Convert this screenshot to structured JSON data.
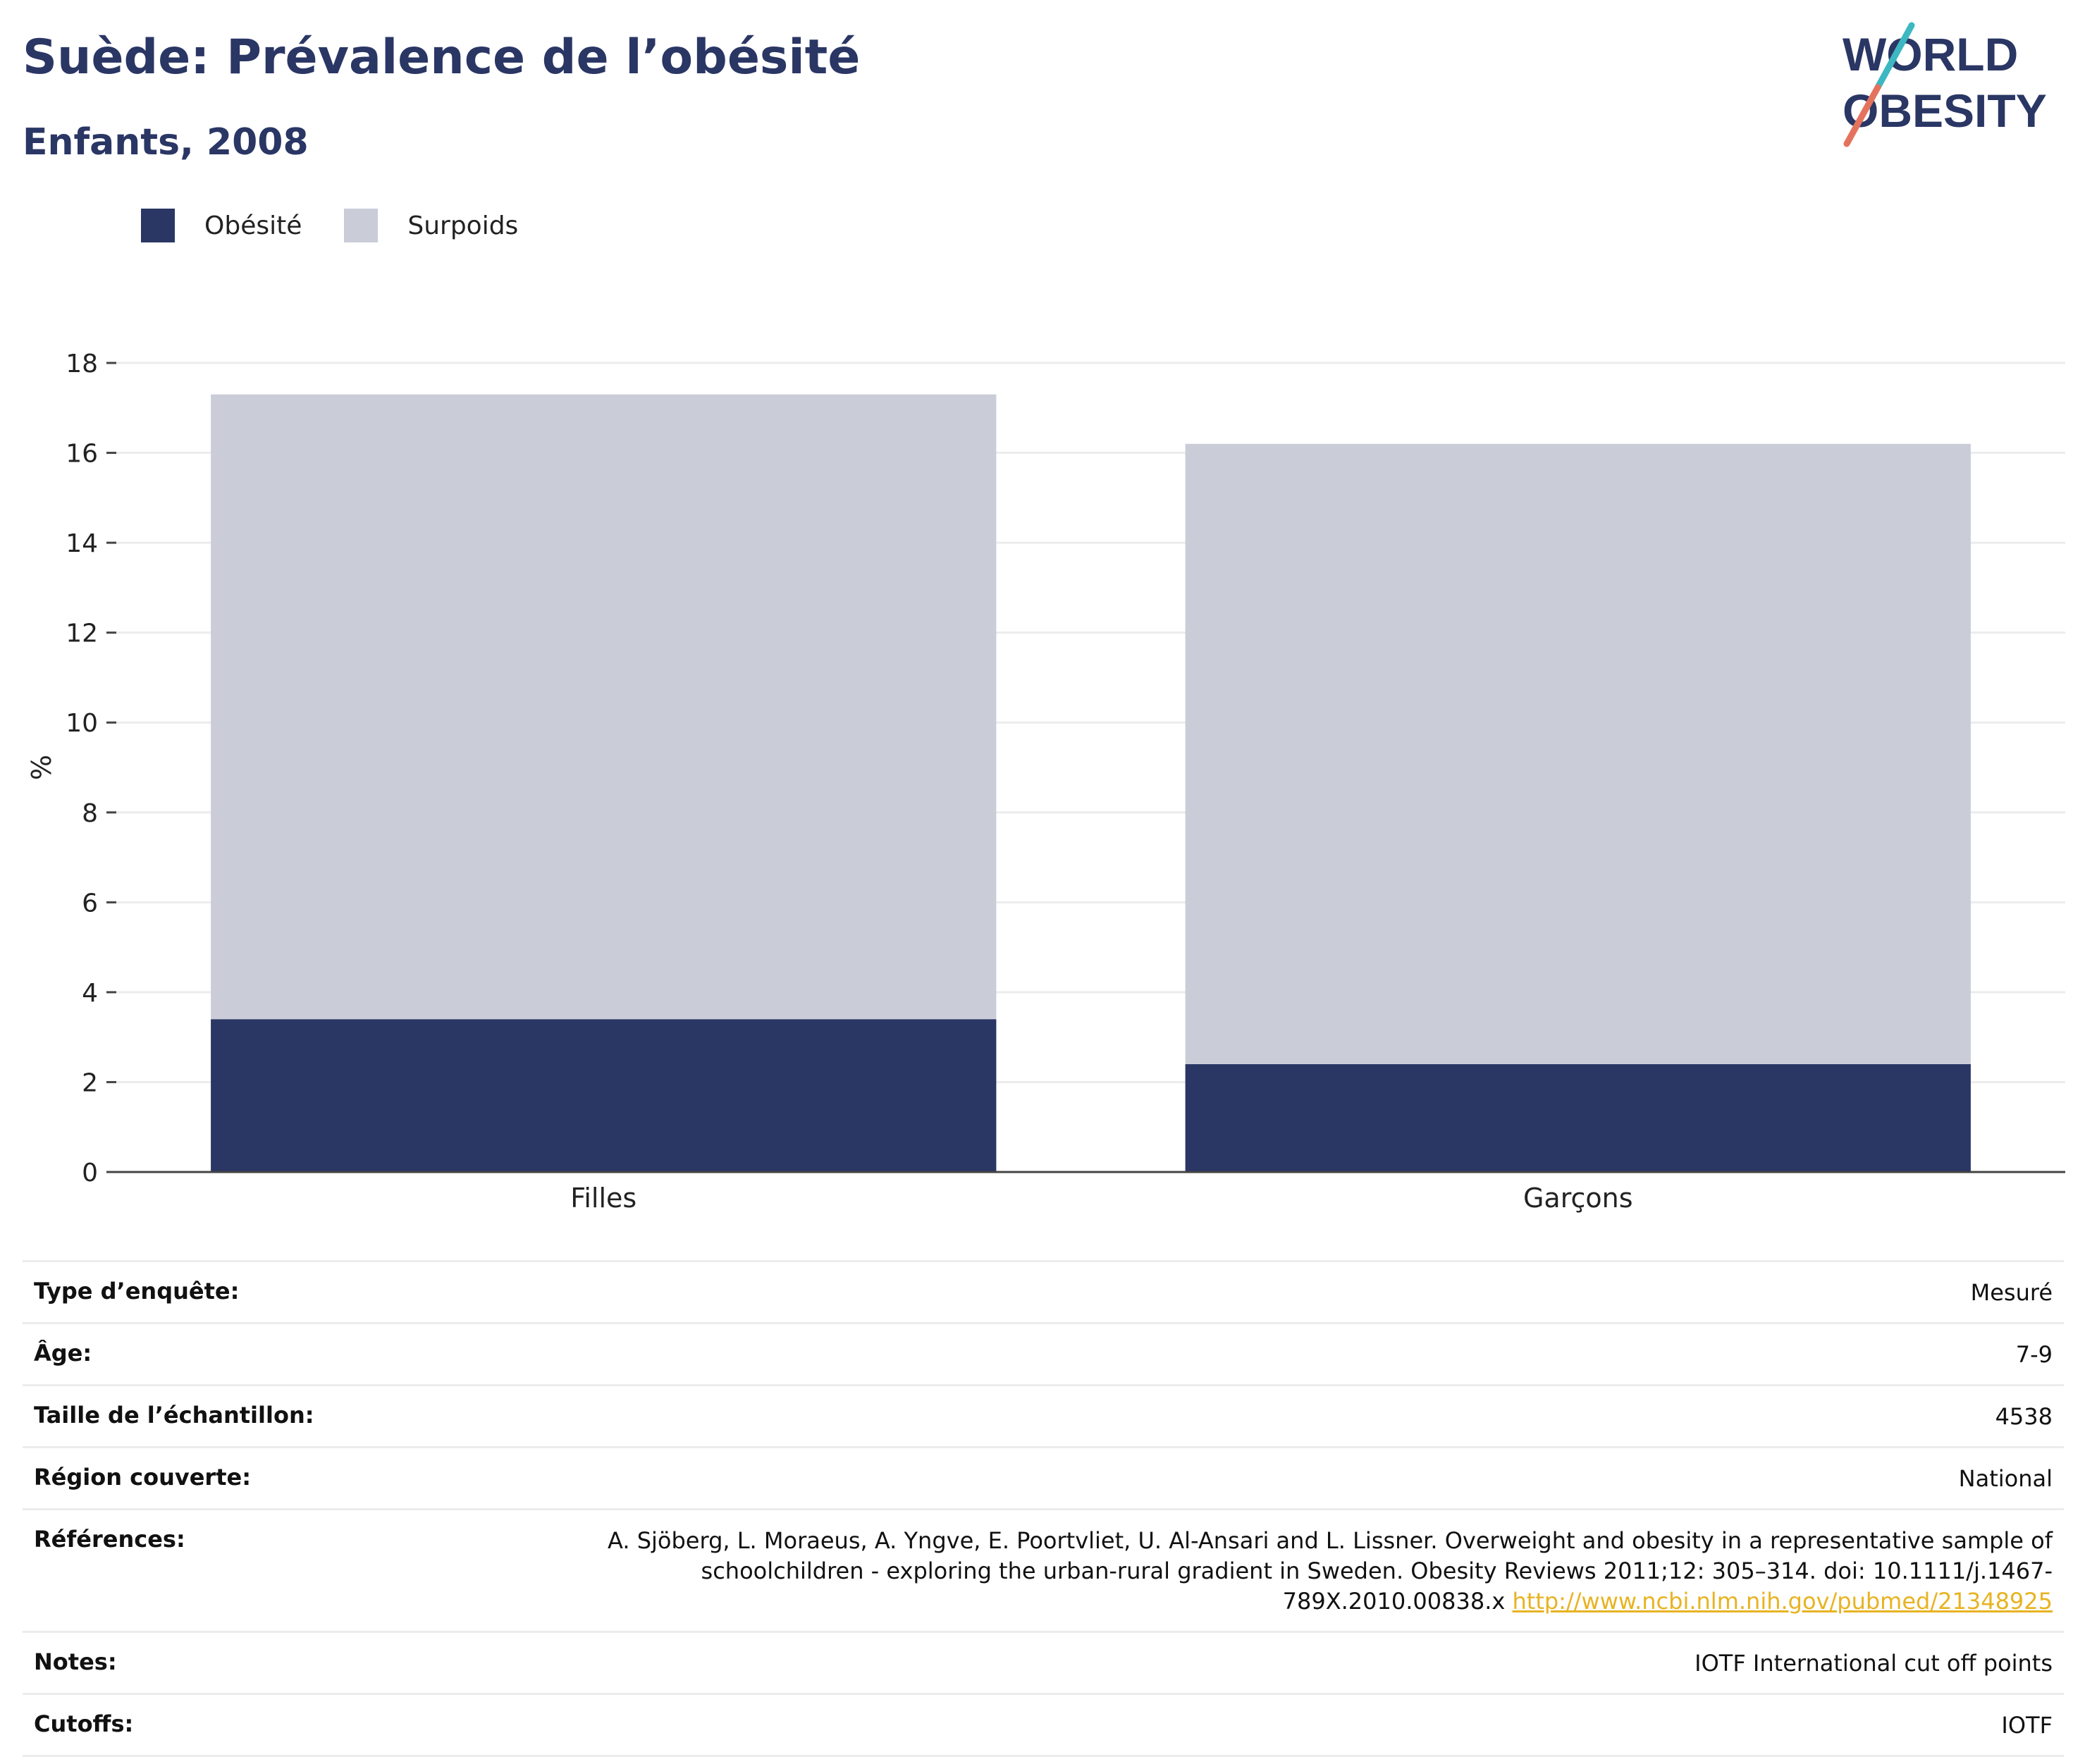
{
  "header": {
    "title": "Suède: Prévalence de l’obésité",
    "subtitle": "Enfants, 2008"
  },
  "logo": {
    "line1": "WORLD",
    "line2": "OBESITY"
  },
  "legend": [
    {
      "label": "Obésité",
      "color": "#2a3664"
    },
    {
      "label": "Surpoids",
      "color": "#cacdd8"
    }
  ],
  "chart_data": {
    "type": "bar",
    "stacked": true,
    "categories": [
      "Filles",
      "Garçons"
    ],
    "series": [
      {
        "name": "Obésité",
        "values": [
          3.4,
          2.4
        ],
        "color": "#2a3664"
      },
      {
        "name": "Surpoids",
        "values": [
          13.9,
          13.8
        ],
        "color": "#cacdd8"
      }
    ],
    "title": "Suède: Prévalence de l’obésité",
    "subtitle": "Enfants, 2008",
    "xlabel": "",
    "ylabel": "%",
    "ylim": [
      0,
      18
    ],
    "yticks": [
      0,
      2,
      4,
      6,
      8,
      10,
      12,
      14,
      16,
      18
    ],
    "grid": true,
    "legend_position": "top-left"
  },
  "info": {
    "survey_type": {
      "label": "Type d’enquête:",
      "value": "Mesuré"
    },
    "age": {
      "label": "Âge:",
      "value": "7-9"
    },
    "sample_size": {
      "label": "Taille de l’échantillon:",
      "value": "4538"
    },
    "region": {
      "label": "Région couverte:",
      "value": "National"
    },
    "references": {
      "label": "Références:",
      "text": "A. Sjöberg, L. Moraeus, A. Yngve, E. Poortvliet, U. Al-Ansari and L. Lissner. Overweight and obesity in a representative sample of schoolchildren - exploring the urban-rural gradient in Sweden. Obesity Reviews 2011;12: 305–314. doi: 10.1111/j.1467-789X.2010.00838.x",
      "link": "http://www.ncbi.nlm.nih.gov/pubmed/21348925"
    },
    "notes": {
      "label": "Notes:",
      "value": "IOTF International cut off points"
    },
    "cutoffs": {
      "label": "Cutoffs:",
      "value": "IOTF"
    }
  }
}
